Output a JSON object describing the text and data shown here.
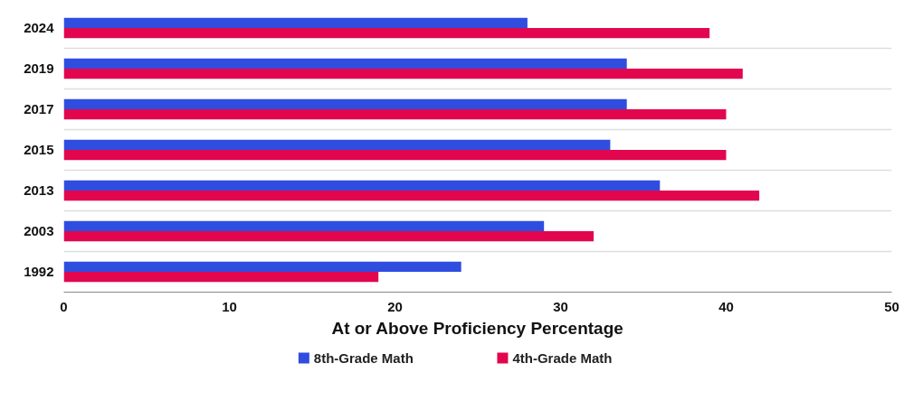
{
  "chart_data": {
    "type": "bar",
    "orientation": "horizontal",
    "xlabel": "At or Above Proficiency Percentage",
    "categories": [
      "2024",
      "2019",
      "2017",
      "2015",
      "2013",
      "2003",
      "1992"
    ],
    "series": [
      {
        "name": "8th-Grade Math",
        "color": "#2f4ddf",
        "values": [
          28,
          34,
          34,
          33,
          36,
          29,
          24
        ]
      },
      {
        "name": "4th-Grade Math",
        "color": "#e2064f",
        "values": [
          39,
          41,
          40,
          40,
          42,
          32,
          19
        ]
      }
    ],
    "xlim": [
      0,
      50
    ],
    "xticks": [
      0,
      10,
      20,
      30,
      40,
      50
    ],
    "grid": "y",
    "legend": "bottom"
  }
}
